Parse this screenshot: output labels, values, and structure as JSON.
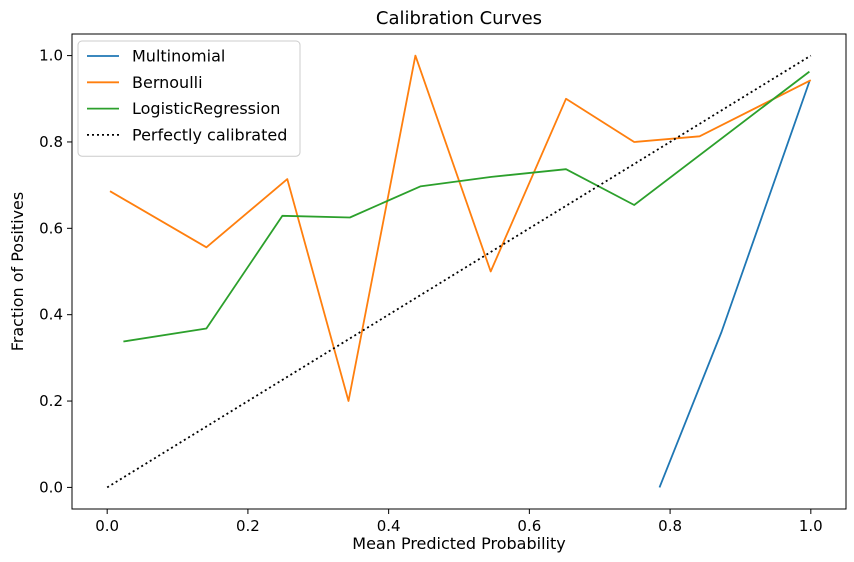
{
  "chart_data": {
    "type": "line",
    "title": "Calibration Curves",
    "xlabel": "Mean Predicted Probability",
    "ylabel": "Fraction of Positives",
    "xlim": [
      -0.05,
      1.05
    ],
    "ylim": [
      -0.05,
      1.05
    ],
    "xticks": [
      0.0,
      0.2,
      0.4,
      0.6,
      0.8,
      1.0
    ],
    "yticks": [
      0.0,
      0.2,
      0.4,
      0.6,
      0.8,
      1.0
    ],
    "xtick_labels": [
      "0.0",
      "0.2",
      "0.4",
      "0.6",
      "0.8",
      "1.0"
    ],
    "ytick_labels": [
      "0.0",
      "0.2",
      "0.4",
      "0.6",
      "0.8",
      "1.0"
    ],
    "grid": false,
    "legend_position": "top-left",
    "series": [
      {
        "name": "Multinomial",
        "color": "#1f77b4",
        "style": "solid",
        "x": [
          0.785,
          0.873,
          0.998
        ],
        "y": [
          0.0,
          0.36,
          0.94
        ]
      },
      {
        "name": "Bernoulli",
        "color": "#ff7f0e",
        "style": "solid",
        "x": [
          0.004,
          0.141,
          0.256,
          0.343,
          0.438,
          0.545,
          0.652,
          0.749,
          0.842,
          1.0
        ],
        "y": [
          0.686,
          0.556,
          0.714,
          0.2,
          1.0,
          0.5,
          0.9,
          0.8,
          0.813,
          0.943
        ]
      },
      {
        "name": "LogisticRegression",
        "color": "#2ca02c",
        "style": "solid",
        "x": [
          0.023,
          0.141,
          0.249,
          0.345,
          0.445,
          0.546,
          0.652,
          0.749,
          0.998
        ],
        "y": [
          0.338,
          0.368,
          0.629,
          0.625,
          0.697,
          0.719,
          0.737,
          0.654,
          0.963
        ]
      },
      {
        "name": "Perfectly calibrated",
        "color": "#000000",
        "style": "dotted",
        "x": [
          0.0,
          1.0
        ],
        "y": [
          0.0,
          1.0
        ]
      }
    ]
  }
}
